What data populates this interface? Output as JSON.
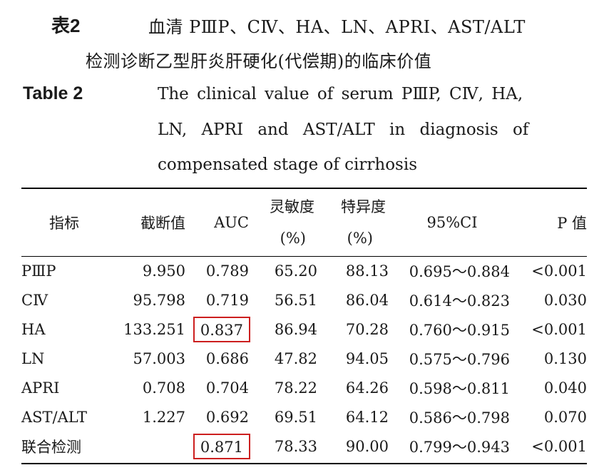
{
  "caption_cn": {
    "label": "表2",
    "line1": "血清 PⅢP、CⅣ、HA、LN、APRI、AST/ALT",
    "line2": "检测诊断乙型肝炎肝硬化(代偿期)的临床价值"
  },
  "caption_en": {
    "label": "Table 2",
    "line1": "The clinical value of serum PⅢP, CⅣ, HA,",
    "line2": "LN, APRI and AST/ALT in diagnosis of",
    "line3": "compensated stage of cirrhosis"
  },
  "table": {
    "headers": {
      "indicator": "指标",
      "cutoff": "截断值",
      "auc": "AUC",
      "sensitivity": "灵敏度",
      "sensitivity_unit": "(%)",
      "specificity": "特异度",
      "specificity_unit": "(%)",
      "ci": "95%CI",
      "p": "P 值"
    },
    "rows": [
      {
        "indicator": "PⅢP",
        "cutoff": "9.950",
        "auc": "0.789",
        "sensitivity": "65.20",
        "specificity": "88.13",
        "ci": "0.695～0.884",
        "p": "<0.001",
        "highlight": false
      },
      {
        "indicator": "CⅣ",
        "cutoff": "95.798",
        "auc": "0.719",
        "sensitivity": "56.51",
        "specificity": "86.04",
        "ci": "0.614～0.823",
        "p": "0.030",
        "highlight": false
      },
      {
        "indicator": "HA",
        "cutoff": "133.251",
        "auc": "0.837",
        "sensitivity": "86.94",
        "specificity": "70.28",
        "ci": "0.760～0.915",
        "p": "<0.001",
        "highlight": true
      },
      {
        "indicator": "LN",
        "cutoff": "57.003",
        "auc": "0.686",
        "sensitivity": "47.82",
        "specificity": "94.05",
        "ci": "0.575～0.796",
        "p": "0.130",
        "highlight": false
      },
      {
        "indicator": "APRI",
        "cutoff": "0.708",
        "auc": "0.704",
        "sensitivity": "78.22",
        "specificity": "64.26",
        "ci": "0.598～0.811",
        "p": "0.040",
        "highlight": false
      },
      {
        "indicator": "AST/ALT",
        "cutoff": "1.227",
        "auc": "0.692",
        "sensitivity": "69.51",
        "specificity": "64.12",
        "ci": "0.586～0.798",
        "p": "0.070",
        "highlight": false
      },
      {
        "indicator": "联合检测",
        "cutoff": "",
        "auc": "0.871",
        "sensitivity": "78.33",
        "specificity": "90.00",
        "ci": "0.799～0.943",
        "p": "<0.001",
        "highlight": true
      }
    ]
  },
  "colors": {
    "highlight_box": "#cc1f1f",
    "rule": "#000000",
    "text": "#1a1a1a"
  }
}
